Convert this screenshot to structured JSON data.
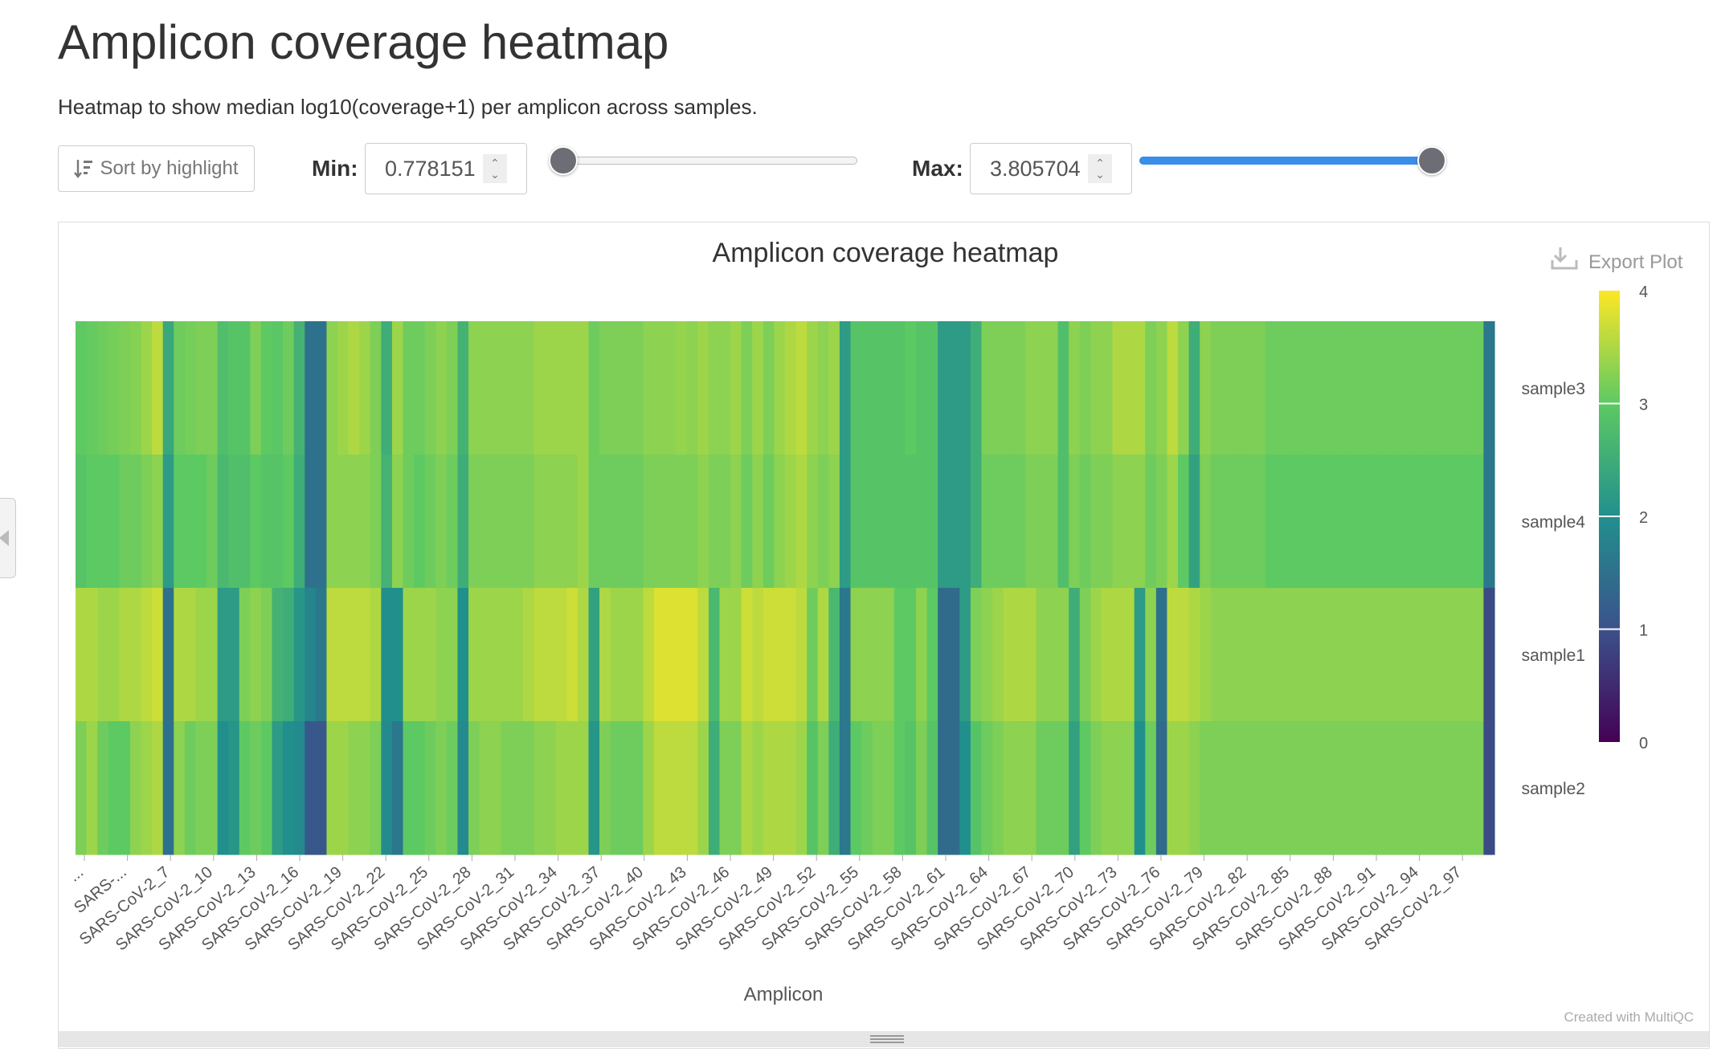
{
  "page": {
    "title": "Amplicon coverage heatmap",
    "description": "Heatmap to show median log10(coverage+1) per amplicon across samples."
  },
  "controls": {
    "sort_button": {
      "label": "Sort by highlight",
      "icon": "sort-amount-down-icon"
    },
    "min": {
      "label": "Min:",
      "value": "0.778151",
      "slider_value": 0.778151
    },
    "max": {
      "label": "Max:",
      "value": "3.805704",
      "slider_value": 3.805704
    },
    "range": [
      0.778151,
      3.805704
    ]
  },
  "plot": {
    "export_label": "Export Plot",
    "export_icon": "download-icon",
    "credit": "Created with MultiQC"
  },
  "colors": {
    "scale": [
      "#440154",
      "#3b528b",
      "#21908d",
      "#5dc963",
      "#fde725"
    ],
    "slider_fill": "#3b8ee8",
    "slider_thumb": "#6d6e75"
  },
  "chart_data": {
    "type": "heatmap",
    "title": "Amplicon coverage heatmap",
    "xlabel": "Amplicon",
    "ylabel": "",
    "zlim": [
      0,
      4
    ],
    "colorbar_ticks": [
      "0",
      "1",
      "2",
      "3",
      "4"
    ],
    "samples": [
      "sample3",
      "sample4",
      "sample1",
      "sample2"
    ],
    "tick_labels": [
      "...",
      "SARS-...",
      "SARS-CoV-2_7",
      "SARS-CoV-2_10",
      "SARS-CoV-2_13",
      "SARS-CoV-2_16",
      "SARS-CoV-2_19",
      "SARS-CoV-2_22",
      "SARS-CoV-2_25",
      "SARS-CoV-2_28",
      "SARS-CoV-2_31",
      "SARS-CoV-2_34",
      "SARS-CoV-2_37",
      "SARS-CoV-2_40",
      "SARS-CoV-2_43",
      "SARS-CoV-2_46",
      "SARS-CoV-2_49",
      "SARS-CoV-2_52",
      "SARS-CoV-2_55",
      "SARS-CoV-2_58",
      "SARS-CoV-2_61",
      "SARS-CoV-2_64",
      "SARS-CoV-2_67",
      "SARS-CoV-2_70",
      "SARS-CoV-2_73",
      "SARS-CoV-2_76",
      "SARS-CoV-2_79",
      "SARS-CoV-2_82",
      "SARS-CoV-2_85",
      "SARS-CoV-2_88",
      "SARS-CoV-2_91",
      "SARS-CoV-2_94",
      "SARS-CoV-2_97"
    ],
    "values": [
      [
        3.0,
        3.05,
        3.1,
        3.15,
        3.2,
        3.25,
        3.4,
        3.6,
        2.4,
        3.1,
        3.15,
        3.2,
        3.2,
        2.8,
        2.9,
        2.9,
        3.2,
        3.0,
        2.95,
        3.1,
        2.6,
        1.5,
        1.5,
        3.3,
        3.4,
        3.5,
        3.4,
        3.2,
        2.5,
        3.4,
        3.1,
        3.1,
        3.2,
        3.3,
        3.2,
        2.6,
        3.3,
        3.3,
        3.3,
        3.3,
        3.3,
        3.3,
        3.4,
        3.4,
        3.4,
        3.4,
        3.4,
        3.1,
        3.2,
        3.2,
        3.2,
        3.2,
        3.3,
        3.3,
        3.3,
        3.35,
        3.3,
        3.4,
        3.3,
        3.3,
        3.4,
        3.2,
        3.4,
        3.2,
        3.4,
        3.5,
        3.6,
        3.4,
        3.3,
        3.4,
        2.2,
        2.9,
        2.9,
        2.9,
        2.9,
        2.9,
        3.0,
        2.9,
        2.9,
        2.2,
        2.2,
        2.2,
        2.5,
        3.2,
        3.2,
        3.2,
        3.2,
        3.3,
        3.3,
        3.3,
        2.8,
        3.3,
        3.2,
        3.3,
        3.3,
        3.5,
        3.5,
        3.5,
        3.2,
        3.3,
        3.6,
        3.3,
        2.5,
        3.3,
        3.2,
        3.2,
        3.2,
        3.2,
        3.2,
        3.1,
        3.1,
        3.1,
        3.1,
        3.1,
        3.1,
        3.1,
        3.1,
        3.1,
        3.1,
        3.1,
        3.1,
        3.1,
        3.1,
        3.1,
        3.1,
        3.1,
        3.1,
        3.1,
        3.1,
        1.6
      ],
      [
        2.9,
        3.0,
        3.0,
        3.0,
        3.1,
        3.1,
        3.2,
        3.3,
        2.2,
        3.0,
        3.0,
        3.0,
        3.1,
        2.7,
        2.8,
        2.8,
        3.0,
        2.9,
        2.9,
        3.0,
        2.5,
        1.5,
        1.5,
        3.3,
        3.3,
        3.3,
        3.3,
        3.2,
        2.6,
        3.3,
        3.1,
        3.0,
        3.1,
        3.2,
        3.1,
        2.5,
        3.2,
        3.2,
        3.2,
        3.2,
        3.2,
        3.2,
        3.3,
        3.3,
        3.3,
        3.3,
        3.4,
        3.1,
        3.1,
        3.1,
        3.1,
        3.1,
        3.2,
        3.2,
        3.2,
        3.2,
        3.2,
        3.3,
        3.2,
        3.2,
        3.3,
        3.1,
        3.3,
        3.1,
        3.3,
        3.4,
        3.5,
        3.3,
        3.2,
        3.3,
        2.2,
        2.9,
        2.9,
        2.9,
        2.9,
        2.9,
        2.9,
        2.9,
        2.9,
        2.2,
        2.2,
        2.2,
        2.5,
        3.1,
        3.1,
        3.1,
        3.1,
        3.2,
        3.2,
        3.2,
        2.8,
        3.2,
        3.1,
        3.2,
        3.2,
        3.3,
        3.3,
        3.3,
        3.1,
        3.2,
        3.4,
        3.0,
        2.3,
        3.2,
        3.1,
        3.1,
        3.1,
        3.1,
        3.1,
        3.0,
        3.0,
        3.0,
        3.0,
        3.0,
        3.0,
        3.0,
        3.0,
        3.0,
        3.0,
        3.0,
        3.0,
        3.0,
        3.0,
        3.0,
        3.0,
        3.0,
        3.0,
        3.0,
        3.0,
        1.6
      ],
      [
        3.5,
        3.5,
        3.4,
        3.4,
        3.5,
        3.5,
        3.6,
        3.7,
        1.5,
        3.5,
        3.5,
        3.4,
        3.4,
        2.2,
        2.2,
        3.2,
        3.3,
        3.2,
        2.6,
        2.5,
        2.1,
        1.8,
        1.6,
        3.6,
        3.6,
        3.6,
        3.6,
        3.5,
        2.0,
        2.0,
        3.4,
        3.4,
        3.4,
        3.3,
        3.3,
        2.0,
        3.4,
        3.4,
        3.4,
        3.4,
        3.4,
        3.5,
        3.6,
        3.6,
        3.6,
        3.7,
        3.5,
        2.3,
        3.5,
        3.4,
        3.4,
        3.4,
        3.6,
        3.8,
        3.8,
        3.8,
        3.8,
        3.6,
        2.7,
        3.4,
        3.4,
        3.7,
        3.6,
        3.7,
        3.7,
        3.7,
        3.6,
        3.1,
        3.5,
        2.7,
        1.6,
        3.3,
        3.3,
        3.3,
        3.3,
        3.0,
        3.0,
        3.3,
        3.0,
        1.4,
        1.4,
        2.2,
        3.2,
        3.3,
        3.4,
        3.5,
        3.5,
        3.5,
        3.3,
        3.3,
        3.3,
        2.5,
        3.2,
        3.4,
        3.5,
        3.5,
        3.5,
        2.2,
        3.3,
        1.5,
        3.6,
        3.6,
        3.5,
        3.4,
        3.3,
        3.3,
        3.3,
        3.3,
        3.3,
        3.3,
        3.3,
        3.3,
        3.3,
        3.3,
        3.3,
        3.3,
        3.3,
        3.3,
        3.3,
        3.3,
        3.3,
        3.3,
        3.3,
        3.3,
        3.3,
        3.3,
        3.3,
        3.3,
        3.3,
        0.9
      ],
      [
        3.2,
        3.4,
        3.1,
        3.0,
        3.0,
        3.3,
        3.4,
        3.5,
        1.5,
        3.3,
        3.1,
        3.2,
        3.2,
        2.0,
        2.1,
        3.0,
        3.1,
        3.0,
        2.2,
        2.0,
        1.9,
        1.1,
        1.1,
        3.4,
        3.4,
        3.3,
        3.3,
        3.2,
        1.9,
        1.6,
        3.0,
        3.0,
        3.1,
        3.2,
        3.1,
        1.9,
        3.2,
        3.3,
        3.3,
        3.2,
        3.2,
        3.2,
        3.3,
        3.3,
        3.4,
        3.4,
        3.4,
        2.1,
        3.2,
        3.1,
        3.1,
        3.1,
        3.4,
        3.6,
        3.6,
        3.6,
        3.6,
        3.4,
        2.5,
        3.2,
        3.2,
        3.5,
        3.4,
        3.5,
        3.5,
        3.5,
        3.4,
        2.9,
        3.2,
        2.5,
        1.6,
        3.0,
        3.1,
        3.2,
        3.2,
        3.0,
        2.9,
        3.2,
        2.9,
        1.4,
        1.4,
        2.0,
        2.9,
        3.1,
        3.2,
        3.3,
        3.3,
        3.3,
        3.1,
        3.1,
        3.1,
        2.3,
        3.0,
        3.2,
        3.3,
        3.3,
        3.3,
        2.0,
        3.1,
        1.4,
        3.4,
        3.4,
        3.3,
        3.2,
        3.2,
        3.2,
        3.2,
        3.2,
        3.2,
        3.2,
        3.2,
        3.2,
        3.2,
        3.2,
        3.2,
        3.2,
        3.2,
        3.2,
        3.2,
        3.2,
        3.2,
        3.2,
        3.2,
        3.2,
        3.2,
        3.2,
        3.2,
        3.2,
        3.2,
        0.9
      ]
    ]
  }
}
